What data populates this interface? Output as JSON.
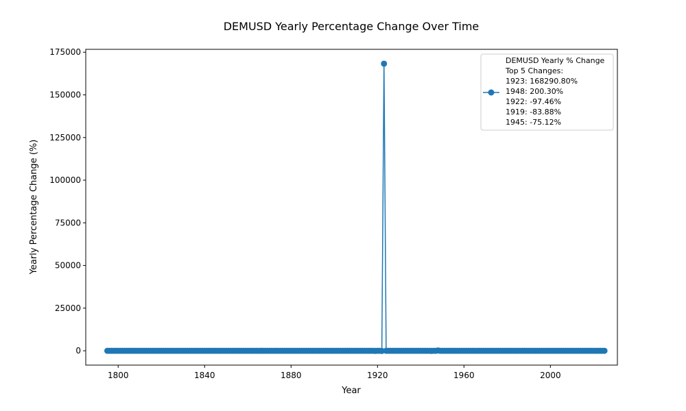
{
  "chart_data": {
    "type": "line",
    "title": "DEMUSD Yearly Percentage Change Over Time",
    "xlabel": "Year",
    "ylabel": "Yearly Percentage Change (%)",
    "xlim": [
      1785,
      2031
    ],
    "ylim": [
      -8400,
      176700
    ],
    "xticks": [
      1800,
      1840,
      1880,
      1920,
      1960,
      2000
    ],
    "yticks": [
      0,
      25000,
      50000,
      75000,
      100000,
      125000,
      150000,
      175000
    ],
    "grid": false,
    "legend_position": "top-right",
    "series": [
      {
        "name": "DEMUSD Yearly % Change",
        "color": "#1f77b4",
        "marker": "circle",
        "x_range": [
          1795,
          2025
        ],
        "baseline_value": 0,
        "points": [
          {
            "x": 1919,
            "y": -83.88
          },
          {
            "x": 1922,
            "y": -97.46
          },
          {
            "x": 1923,
            "y": 168290.8
          },
          {
            "x": 1945,
            "y": -75.12
          },
          {
            "x": 1948,
            "y": 200.3
          }
        ]
      }
    ],
    "legend": {
      "lines": [
        "DEMUSD Yearly % Change",
        "Top 5 Changes:",
        "1923: 168290.80%",
        "1948: 200.30%",
        "1922: -97.46%",
        "1919: -83.88%",
        "1945: -75.12%"
      ]
    }
  }
}
